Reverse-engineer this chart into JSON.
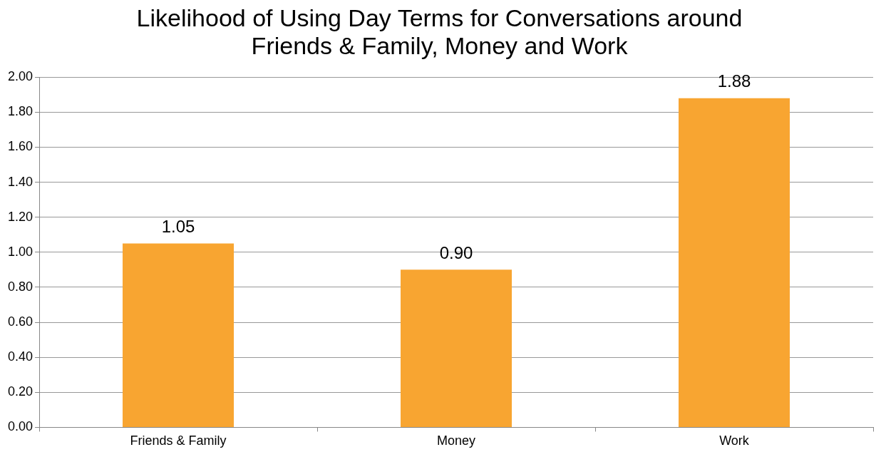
{
  "chart_data": {
    "type": "bar",
    "title": "Likelihood of Using Day Terms for Conversations around\nFriends & Family, Money and Work",
    "categories": [
      "Friends & Family",
      "Money",
      "Work"
    ],
    "values": [
      1.05,
      0.9,
      1.88
    ],
    "color": "#f8a531",
    "value_labels": [
      "1.05",
      "0.90",
      "1.88"
    ],
    "ylim": [
      0,
      2
    ],
    "yticks": [
      {
        "value": 0,
        "label": "0.00"
      },
      {
        "value": 0.2,
        "label": "0.20"
      },
      {
        "value": 0.4,
        "label": "0.40"
      },
      {
        "value": 0.6,
        "label": "0.60"
      },
      {
        "value": 0.8,
        "label": "0.80"
      },
      {
        "value": 1,
        "label": "1.00"
      },
      {
        "value": 1.2,
        "label": "1.20"
      },
      {
        "value": 1.4,
        "label": "1.40"
      },
      {
        "value": 1.6,
        "label": "1.60"
      },
      {
        "value": 1.8,
        "label": "1.80"
      },
      {
        "value": 2,
        "label": "2.00"
      }
    ],
    "grid": "y",
    "legend": false
  }
}
